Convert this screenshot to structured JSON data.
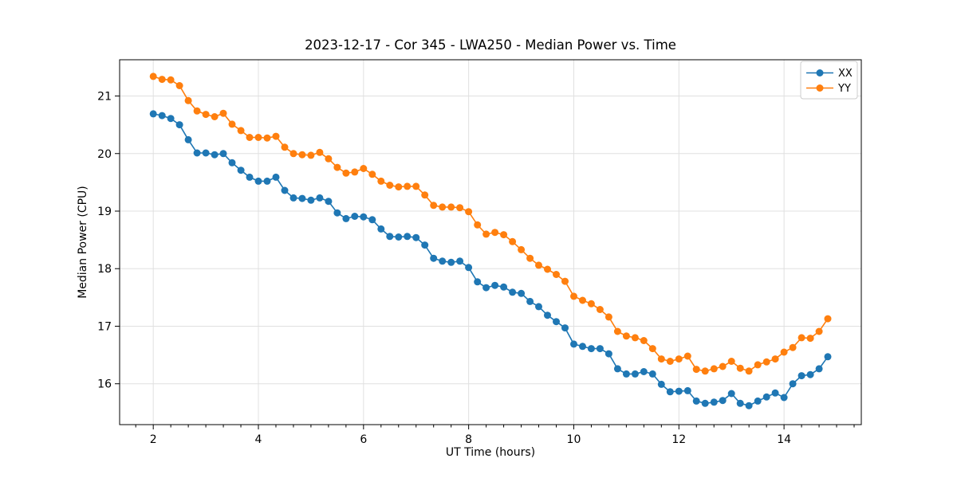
{
  "figure": {
    "background": "#ffffff"
  },
  "chart_data": {
    "type": "line",
    "title": "2023-12-17 - Cor 345 - LWA250 - Median Power vs. Time",
    "xlabel": "UT Time (hours)",
    "ylabel": "Median Power (CPU)",
    "xlim": [
      1.36,
      15.47
    ],
    "ylim": [
      15.29,
      21.63
    ],
    "xticks": [
      2,
      4,
      6,
      8,
      10,
      12,
      14
    ],
    "yticks": [
      16,
      17,
      18,
      19,
      20,
      21
    ],
    "x_minor_tick_step": 0.3333333,
    "grid": true,
    "marker": "circle",
    "legend": {
      "position": "upper right",
      "entries": [
        "XX",
        "YY"
      ]
    },
    "x": [
      2,
      2.167,
      2.333,
      2.5,
      2.667,
      2.833,
      3,
      3.167,
      3.333,
      3.5,
      3.667,
      3.833,
      4,
      4.167,
      4.333,
      4.5,
      4.667,
      4.833,
      5,
      5.167,
      5.333,
      5.5,
      5.667,
      5.833,
      6,
      6.167,
      6.333,
      6.5,
      6.667,
      6.833,
      7,
      7.167,
      7.333,
      7.5,
      7.667,
      7.833,
      8,
      8.167,
      8.333,
      8.5,
      8.667,
      8.833,
      9,
      9.167,
      9.333,
      9.5,
      9.667,
      9.833,
      10,
      10.167,
      10.333,
      10.5,
      10.667,
      10.833,
      11,
      11.167,
      11.333,
      11.5,
      11.667,
      11.833,
      12,
      12.167,
      12.333,
      12.5,
      12.667,
      12.833,
      13,
      13.167,
      13.333,
      13.5,
      13.667,
      13.833,
      14,
      14.167,
      14.333,
      14.5,
      14.667,
      14.833
    ],
    "series": [
      {
        "name": "XX",
        "color": "#1f77b4",
        "values": [
          20.69,
          20.66,
          20.61,
          20.5,
          20.24,
          20.01,
          20.01,
          19.98,
          20.0,
          19.84,
          19.71,
          19.59,
          19.52,
          19.52,
          19.59,
          19.36,
          19.23,
          19.22,
          19.19,
          19.23,
          19.17,
          18.97,
          18.87,
          18.91,
          18.9,
          18.85,
          18.69,
          18.56,
          18.55,
          18.56,
          18.54,
          18.41,
          18.18,
          18.13,
          18.11,
          18.13,
          18.02,
          17.77,
          17.67,
          17.71,
          17.68,
          17.59,
          17.57,
          17.43,
          17.34,
          17.19,
          17.08,
          16.97,
          16.69,
          16.65,
          16.61,
          16.61,
          16.52,
          16.26,
          16.17,
          16.17,
          16.21,
          16.17,
          15.99,
          15.86,
          15.87,
          15.88,
          15.7,
          15.66,
          15.68,
          15.71,
          15.83,
          15.66,
          15.62,
          15.7,
          15.77,
          15.84,
          15.76,
          16.0,
          16.14,
          16.16,
          16.26,
          16.47
        ]
      },
      {
        "name": "YY",
        "color": "#ff7f0e",
        "values": [
          21.34,
          21.29,
          21.28,
          21.18,
          20.92,
          20.74,
          20.68,
          20.64,
          20.7,
          20.51,
          20.4,
          20.28,
          20.28,
          20.27,
          20.3,
          20.11,
          20.0,
          19.98,
          19.97,
          20.02,
          19.91,
          19.76,
          19.66,
          19.68,
          19.74,
          19.64,
          19.52,
          19.45,
          19.42,
          19.43,
          19.43,
          19.28,
          19.1,
          19.07,
          19.07,
          19.06,
          18.99,
          18.76,
          18.6,
          18.63,
          18.59,
          18.47,
          18.33,
          18.18,
          18.06,
          17.99,
          17.9,
          17.78,
          17.52,
          17.45,
          17.39,
          17.29,
          17.16,
          16.91,
          16.83,
          16.8,
          16.75,
          16.61,
          16.43,
          16.39,
          16.43,
          16.48,
          16.25,
          16.22,
          16.26,
          16.3,
          16.39,
          16.27,
          16.22,
          16.33,
          16.38,
          16.43,
          16.55,
          16.63,
          16.8,
          16.79,
          16.91,
          17.13
        ]
      }
    ]
  },
  "style": {
    "grid_color": "#e0e0e0",
    "spine_color": "#000000",
    "tick_color": "#000000",
    "legend_border_color": "#cccccc",
    "legend_background": "#ffffff"
  }
}
